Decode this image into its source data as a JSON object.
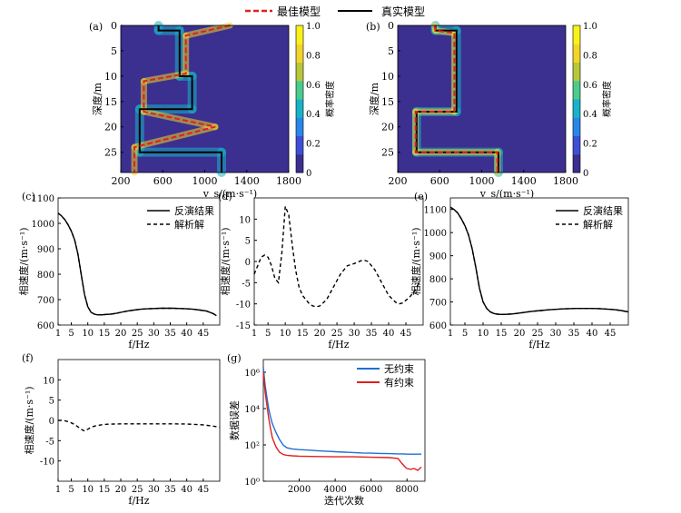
{
  "legend": {
    "best": {
      "label": "最佳模型",
      "color": "#e02020",
      "dash": "dashed"
    },
    "true": {
      "label": "真实模型",
      "color": "#000000",
      "dash": "solid"
    }
  },
  "colormap": [
    "#3b2f8f",
    "#3e4fd6",
    "#2a86e8",
    "#18b3c9",
    "#4ccb8f",
    "#b8c63a",
    "#f2d52a",
    "#f9f11a"
  ],
  "chart_data": [
    {
      "id": "a",
      "panel_label": "(a)",
      "type": "heatmap",
      "xlabel": "v_s/(m·s⁻¹)",
      "ylabel": "深度/m",
      "xlim": [
        200,
        1800
      ],
      "ylim": [
        29,
        0
      ],
      "xticks": [
        200,
        600,
        1000,
        1400,
        1800
      ],
      "yticks": [
        0,
        5,
        10,
        15,
        20,
        25
      ],
      "colorbar": {
        "label": "概率密度",
        "ticks": [
          "0",
          "0.2",
          "0.4",
          "0.6",
          "0.8",
          "1.0"
        ],
        "range": [
          0,
          1
        ]
      },
      "true_model": [
        [
          560,
          0
        ],
        [
          560,
          1
        ],
        [
          760,
          1
        ],
        [
          760,
          10
        ],
        [
          880,
          10
        ],
        [
          880,
          16.5
        ],
        [
          380,
          16.5
        ],
        [
          380,
          25
        ],
        [
          1160,
          25
        ],
        [
          1160,
          29
        ]
      ],
      "best_model": [
        [
          1240,
          0
        ],
        [
          820,
          2
        ],
        [
          820,
          9.5
        ],
        [
          420,
          11
        ],
        [
          420,
          17
        ],
        [
          1100,
          20
        ],
        [
          330,
          24
        ],
        [
          330,
          29
        ]
      ]
    },
    {
      "id": "b",
      "panel_label": "(b)",
      "type": "heatmap",
      "xlabel": "v_s/(m·s⁻¹)",
      "ylabel": "深度/m",
      "xlim": [
        200,
        1800
      ],
      "ylim": [
        29,
        0
      ],
      "xticks": [
        200,
        600,
        1000,
        1400,
        1800
      ],
      "yticks": [
        0,
        5,
        10,
        15,
        20,
        25
      ],
      "colorbar": {
        "label": "概率密度",
        "ticks": [
          "0",
          "0.2",
          "0.4",
          "0.6",
          "0.8",
          "1.0"
        ],
        "range": [
          0,
          1
        ]
      },
      "true_model": [
        [
          560,
          0
        ],
        [
          560,
          1
        ],
        [
          760,
          1
        ],
        [
          760,
          17
        ],
        [
          380,
          17
        ],
        [
          380,
          25
        ],
        [
          1160,
          25
        ],
        [
          1160,
          29
        ]
      ],
      "best_model": [
        [
          550,
          0
        ],
        [
          560,
          1
        ],
        [
          740,
          1.5
        ],
        [
          740,
          17
        ],
        [
          370,
          17
        ],
        [
          370,
          25
        ],
        [
          1150,
          25
        ],
        [
          1150,
          29
        ]
      ]
    },
    {
      "id": "c",
      "panel_label": "(c)",
      "type": "line",
      "xlabel": "f/Hz",
      "ylabel": "相速度/(m·s⁻¹)",
      "xlim": [
        1,
        50
      ],
      "ylim": [
        600,
        1100
      ],
      "xticks": [
        1,
        5,
        10,
        15,
        20,
        25,
        30,
        35,
        40,
        45
      ],
      "yticks": [
        600,
        700,
        800,
        900,
        1000,
        1100
      ],
      "legend": [
        "反演结果",
        "解析解"
      ],
      "series": [
        {
          "name": "反演结果",
          "style": "solid"
        },
        {
          "name": "解析解",
          "style": "dashed"
        }
      ],
      "x": [
        1,
        2,
        3,
        4,
        5,
        6,
        7,
        8,
        9,
        10,
        11,
        12,
        13,
        14,
        15,
        16,
        17,
        18,
        19,
        20,
        22,
        24,
        26,
        28,
        30,
        32,
        34,
        36,
        38,
        40,
        42,
        44,
        46,
        48,
        49
      ],
      "y": [
        1040,
        1030,
        1015,
        995,
        970,
        935,
        880,
        800,
        720,
        672,
        650,
        643,
        640,
        640,
        641,
        642,
        643,
        645,
        647,
        650,
        655,
        659,
        662,
        664,
        665,
        666,
        666,
        666,
        665,
        664,
        662,
        659,
        655,
        645,
        637
      ]
    },
    {
      "id": "d",
      "panel_label": "(d)",
      "type": "line",
      "xlabel": "f/Hz",
      "ylabel": "相速度/(m·s⁻¹)",
      "xlim": [
        1,
        50
      ],
      "ylim": [
        -15,
        15
      ],
      "xticks": [
        1,
        5,
        10,
        15,
        20,
        25,
        30,
        35,
        40,
        45
      ],
      "yticks": [
        -15,
        -10,
        -5,
        0,
        5,
        10
      ],
      "series": [
        {
          "name": "",
          "style": "dashed"
        }
      ],
      "x": [
        1,
        2,
        3,
        4,
        5,
        6,
        7,
        8,
        9,
        10,
        11,
        12,
        13,
        14,
        15,
        16,
        17,
        18,
        19,
        20,
        22,
        24,
        26,
        28,
        30,
        32,
        33,
        34,
        36,
        38,
        40,
        42,
        43,
        44,
        46,
        48,
        49
      ],
      "y": [
        -3,
        -1,
        1,
        1.5,
        1,
        -1,
        -4,
        -5,
        2,
        13,
        11,
        4,
        -2,
        -6,
        -8,
        -9,
        -10,
        -10.5,
        -10.7,
        -10.5,
        -9,
        -6,
        -3,
        -1,
        -0.5,
        0.2,
        0.3,
        0,
        -2,
        -5,
        -8,
        -9.6,
        -10,
        -9.8,
        -8.5,
        -6.5,
        -4.5
      ]
    },
    {
      "id": "e",
      "panel_label": "(e)",
      "type": "line",
      "xlabel": "f/Hz",
      "ylabel": "相速度/(m·s⁻¹)",
      "xlim": [
        1,
        50
      ],
      "ylim": [
        600,
        1150
      ],
      "xticks": [
        1,
        5,
        10,
        15,
        20,
        25,
        30,
        35,
        40,
        45
      ],
      "yticks": [
        600,
        700,
        800,
        900,
        1000,
        1100
      ],
      "legend": [
        "反演结果",
        "解析解"
      ],
      "series": [
        {
          "name": "反演结果",
          "style": "solid"
        },
        {
          "name": "解析解",
          "style": "dashed"
        }
      ],
      "x": [
        1,
        2,
        3,
        4,
        5,
        6,
        7,
        8,
        9,
        10,
        11,
        12,
        13,
        14,
        15,
        16,
        17,
        18,
        19,
        20,
        22,
        24,
        26,
        28,
        30,
        32,
        34,
        36,
        38,
        40,
        42,
        44,
        46,
        48,
        50
      ],
      "y": [
        1110,
        1100,
        1085,
        1060,
        1030,
        990,
        930,
        850,
        760,
        700,
        672,
        657,
        650,
        647,
        646,
        646,
        647,
        648,
        650,
        652,
        656,
        660,
        663,
        666,
        668,
        670,
        671,
        672,
        672,
        672,
        671,
        669,
        667,
        663,
        657
      ]
    },
    {
      "id": "f",
      "panel_label": "(f)",
      "type": "line",
      "xlabel": "f/Hz",
      "ylabel": "相速度/(m·s⁻¹)",
      "xlim": [
        1,
        50
      ],
      "ylim": [
        -15,
        15
      ],
      "xticks": [
        1,
        5,
        10,
        15,
        20,
        25,
        30,
        35,
        40,
        45
      ],
      "yticks": [
        -10,
        -5,
        0,
        5,
        10
      ],
      "series": [
        {
          "name": "",
          "style": "dashed"
        }
      ],
      "x": [
        1,
        2,
        3,
        4,
        5,
        6,
        7,
        8,
        9,
        10,
        11,
        12,
        14,
        16,
        18,
        20,
        25,
        30,
        35,
        40,
        45,
        48,
        50
      ],
      "y": [
        0,
        0,
        -0.1,
        -0.3,
        -0.6,
        -1,
        -1.6,
        -2.2,
        -2.6,
        -2.2,
        -1.7,
        -1.4,
        -1.1,
        -0.95,
        -0.9,
        -0.85,
        -0.85,
        -0.85,
        -0.85,
        -0.9,
        -1.1,
        -1.4,
        -1.7
      ]
    },
    {
      "id": "g",
      "panel_label": "(g)",
      "type": "line",
      "xlabel": "迭代次数",
      "ylabel": "数据误差",
      "xlim": [
        0,
        9000
      ],
      "ylim": [
        1,
        5000000
      ],
      "yscale": "log",
      "xticks": [
        2000,
        4000,
        6000,
        8000
      ],
      "yticks": [
        1,
        100,
        10000,
        1000000
      ],
      "ytick_labels": [
        "10⁰",
        "10²",
        "10⁴",
        "10⁶"
      ],
      "legend": [
        "无约束",
        "有约束"
      ],
      "series": [
        {
          "name": "无约束",
          "color": "#1f6fd1",
          "x": [
            0,
            50,
            100,
            200,
            300,
            400,
            500,
            700,
            900,
            1100,
            1300,
            1600,
            2000,
            2500,
            3000,
            3500,
            4000,
            4500,
            5000,
            5500,
            6000,
            6500,
            7000,
            7500,
            7800,
            8000,
            8500,
            8800
          ],
          "y": [
            2000000,
            600000,
            200000,
            40000,
            10000,
            3500,
            1500,
            500,
            200,
            100,
            70,
            60,
            55,
            52,
            48,
            45,
            42,
            40,
            38,
            36,
            35,
            34,
            33,
            32,
            32,
            31,
            31,
            31
          ]
        },
        {
          "name": "有约束",
          "color": "#e02020",
          "x": [
            0,
            50,
            100,
            200,
            300,
            400,
            500,
            700,
            900,
            1100,
            1300,
            1600,
            2000,
            3000,
            4000,
            5000,
            6000,
            7000,
            7500,
            7700,
            7900,
            8000,
            8200,
            8400,
            8600,
            8800
          ],
          "y": [
            1000000,
            300000,
            80000,
            15000,
            3000,
            800,
            250,
            80,
            40,
            30,
            27,
            25,
            24,
            23,
            22,
            22,
            21,
            20,
            18,
            10,
            6,
            5,
            4.5,
            5,
            4,
            6
          ]
        }
      ]
    }
  ]
}
